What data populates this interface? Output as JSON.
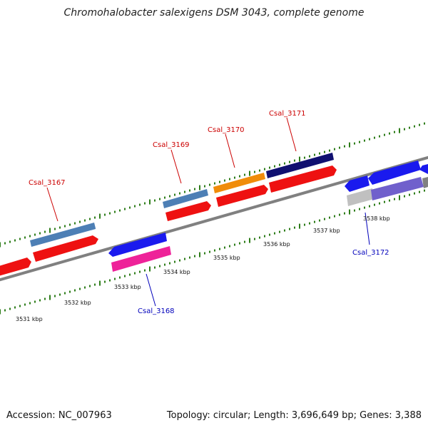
{
  "title": "Chromohalobacter salexigens DSM 3043, complete genome",
  "footer": {
    "accession": "Accession: NC_007963",
    "summary": "Topology: circular; Length: 3,696,649 bp; Genes: 3,388"
  },
  "colors": {
    "backbone": "#808080",
    "tick": "#2e7d1a",
    "forward_label": "#cc0000",
    "reverse_label": "#0000bb",
    "steelblue": "#4d7fb5",
    "red": "#ee1111",
    "blue": "#1a1aee",
    "pink": "#ee2299",
    "orange": "#f08c0a",
    "navy": "#101070",
    "gray": "#c0c0c0",
    "purple": "#7060cc"
  },
  "scale_labels": [
    "3531 kbp",
    "3532 kbp",
    "3533 kbp",
    "3534 kbp",
    "3535 kbp",
    "3536 kbp",
    "3537 kbp",
    "3538 kbp"
  ],
  "gene_labels": [
    {
      "name": "Csal_3167",
      "strand": "forward"
    },
    {
      "name": "Csal_3168",
      "strand": "reverse"
    },
    {
      "name": "Csal_3169",
      "strand": "forward"
    },
    {
      "name": "Csal_3170",
      "strand": "forward"
    },
    {
      "name": "Csal_3171",
      "strand": "forward"
    },
    {
      "name": "Csal_3172",
      "strand": "reverse"
    }
  ]
}
